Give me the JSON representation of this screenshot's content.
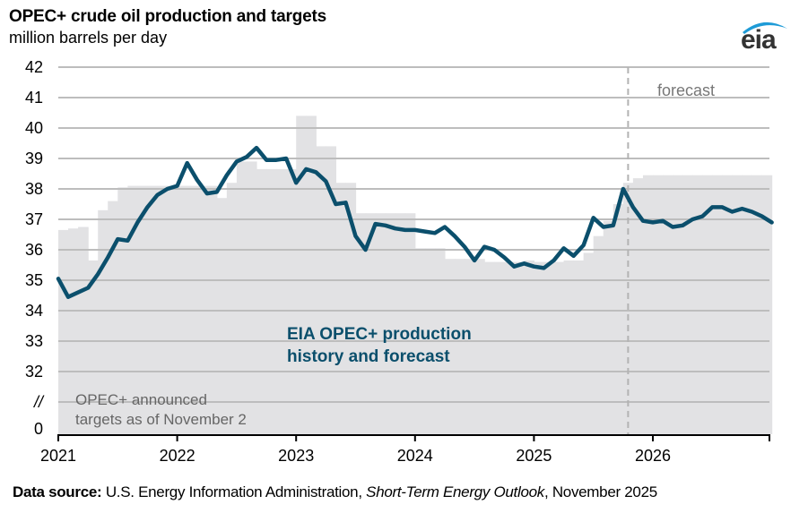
{
  "header": {
    "title": "OPEC+ crude oil production and targets",
    "subtitle": "million barrels per day",
    "logo": "eia"
  },
  "footer": {
    "label": "Data source:",
    "text_before": " U.S. Energy Information Administration, ",
    "publication": "Short-Term Energy Outlook",
    "text_after": ", November 2025"
  },
  "colors": {
    "production_line": "#0b4f6c",
    "targets_fill": "#e2e2e4",
    "gridline": "#bdbdbd",
    "forecast_divider": "#b3b3b3",
    "label_text_gray": "#666666",
    "logo_swoosh": "#1e9bd7"
  },
  "chart_data": {
    "type": "line",
    "title": "OPEC+ crude oil production and targets",
    "ylabel": "million barrels per day",
    "xlabel": "",
    "ylim": [
      32,
      42
    ],
    "y_axis_break": true,
    "y_ticks": [
      "42",
      "41",
      "40",
      "39",
      "38",
      "37",
      "36",
      "35",
      "34",
      "33",
      "32",
      "//",
      "0"
    ],
    "x_ticks": [
      "2021",
      "2022",
      "2023",
      "2024",
      "2025",
      "2026"
    ],
    "x_range": [
      "2021-01",
      "2026-12"
    ],
    "grid": true,
    "forecast_start": "2025-11",
    "annotations": {
      "forecast": "forecast",
      "production_label_line1": "EIA OPEC+ production",
      "production_label_line2": "history and forecast",
      "targets_label_line1": "OPEC+ announced",
      "targets_label_line2": "targets as of November 2"
    },
    "series": [
      {
        "name": "EIA OPEC+ production history and forecast",
        "type": "line",
        "start": "2021-01",
        "frequency": "monthly",
        "values": [
          35.05,
          34.45,
          34.6,
          34.75,
          35.2,
          35.75,
          36.35,
          36.3,
          36.9,
          37.4,
          37.8,
          38.0,
          38.1,
          38.85,
          38.3,
          37.85,
          37.9,
          38.45,
          38.9,
          39.05,
          39.35,
          38.95,
          38.95,
          39.0,
          38.2,
          38.65,
          38.55,
          38.25,
          37.5,
          37.55,
          36.45,
          36.0,
          36.85,
          36.8,
          36.7,
          36.65,
          36.65,
          36.6,
          36.55,
          36.75,
          36.45,
          36.1,
          35.65,
          36.1,
          36.0,
          35.75,
          35.45,
          35.55,
          35.45,
          35.4,
          35.65,
          36.05,
          35.8,
          36.15,
          37.05,
          36.75,
          36.8,
          38.0,
          37.4,
          36.95,
          36.9,
          36.95,
          36.75,
          36.8,
          37.0,
          37.1,
          37.4,
          37.4,
          37.25,
          37.35,
          37.25,
          37.1,
          36.9
        ]
      },
      {
        "name": "OPEC+ announced targets as of November 2",
        "type": "step-area",
        "start": "2021-01",
        "frequency": "monthly",
        "values": [
          36.65,
          36.7,
          36.75,
          35.65,
          37.3,
          37.6,
          38.05,
          38.1,
          38.1,
          38.1,
          38.1,
          38.1,
          38.1,
          38.1,
          38.1,
          38.1,
          37.7,
          38.2,
          38.9,
          38.9,
          38.65,
          38.65,
          38.65,
          38.65,
          40.4,
          40.4,
          39.4,
          39.4,
          38.2,
          38.2,
          37.2,
          37.2,
          37.2,
          37.2,
          37.2,
          37.2,
          36.05,
          36.05,
          36.05,
          35.7,
          35.7,
          35.7,
          35.7,
          35.6,
          35.6,
          35.6,
          35.6,
          35.65,
          35.6,
          35.6,
          35.6,
          35.65,
          35.65,
          35.9,
          36.45,
          36.95,
          37.5,
          38.2,
          38.35,
          38.45,
          38.45,
          38.45,
          38.45,
          38.45,
          38.45,
          38.45,
          38.45,
          38.45,
          38.45,
          38.45,
          38.45,
          38.45,
          38.45
        ]
      }
    ]
  }
}
